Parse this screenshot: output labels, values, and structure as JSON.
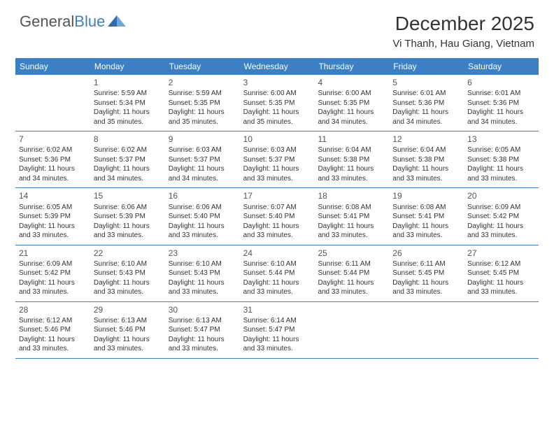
{
  "logo": {
    "part1": "General",
    "part2": "Blue"
  },
  "title": "December 2025",
  "location": "Vi Thanh, Hau Giang, Vietnam",
  "colors": {
    "header_bg": "#3b7fc4",
    "header_text": "#ffffff",
    "text": "#333333",
    "row_border": "#3b7fc4",
    "logo_gray": "#555555",
    "logo_blue": "#3b7fc4",
    "background": "#ffffff"
  },
  "typography": {
    "title_fontsize": 28,
    "location_fontsize": 15,
    "dayheader_fontsize": 12,
    "daynum_fontsize": 12,
    "body_fontsize": 10
  },
  "day_headers": [
    "Sunday",
    "Monday",
    "Tuesday",
    "Wednesday",
    "Thursday",
    "Friday",
    "Saturday"
  ],
  "weeks": [
    [
      {
        "num": "",
        "sunrise": "",
        "sunset": "",
        "daylight": ""
      },
      {
        "num": "1",
        "sunrise": "Sunrise: 5:59 AM",
        "sunset": "Sunset: 5:34 PM",
        "daylight": "Daylight: 11 hours and 35 minutes."
      },
      {
        "num": "2",
        "sunrise": "Sunrise: 5:59 AM",
        "sunset": "Sunset: 5:35 PM",
        "daylight": "Daylight: 11 hours and 35 minutes."
      },
      {
        "num": "3",
        "sunrise": "Sunrise: 6:00 AM",
        "sunset": "Sunset: 5:35 PM",
        "daylight": "Daylight: 11 hours and 35 minutes."
      },
      {
        "num": "4",
        "sunrise": "Sunrise: 6:00 AM",
        "sunset": "Sunset: 5:35 PM",
        "daylight": "Daylight: 11 hours and 34 minutes."
      },
      {
        "num": "5",
        "sunrise": "Sunrise: 6:01 AM",
        "sunset": "Sunset: 5:36 PM",
        "daylight": "Daylight: 11 hours and 34 minutes."
      },
      {
        "num": "6",
        "sunrise": "Sunrise: 6:01 AM",
        "sunset": "Sunset: 5:36 PM",
        "daylight": "Daylight: 11 hours and 34 minutes."
      }
    ],
    [
      {
        "num": "7",
        "sunrise": "Sunrise: 6:02 AM",
        "sunset": "Sunset: 5:36 PM",
        "daylight": "Daylight: 11 hours and 34 minutes."
      },
      {
        "num": "8",
        "sunrise": "Sunrise: 6:02 AM",
        "sunset": "Sunset: 5:37 PM",
        "daylight": "Daylight: 11 hours and 34 minutes."
      },
      {
        "num": "9",
        "sunrise": "Sunrise: 6:03 AM",
        "sunset": "Sunset: 5:37 PM",
        "daylight": "Daylight: 11 hours and 34 minutes."
      },
      {
        "num": "10",
        "sunrise": "Sunrise: 6:03 AM",
        "sunset": "Sunset: 5:37 PM",
        "daylight": "Daylight: 11 hours and 33 minutes."
      },
      {
        "num": "11",
        "sunrise": "Sunrise: 6:04 AM",
        "sunset": "Sunset: 5:38 PM",
        "daylight": "Daylight: 11 hours and 33 minutes."
      },
      {
        "num": "12",
        "sunrise": "Sunrise: 6:04 AM",
        "sunset": "Sunset: 5:38 PM",
        "daylight": "Daylight: 11 hours and 33 minutes."
      },
      {
        "num": "13",
        "sunrise": "Sunrise: 6:05 AM",
        "sunset": "Sunset: 5:38 PM",
        "daylight": "Daylight: 11 hours and 33 minutes."
      }
    ],
    [
      {
        "num": "14",
        "sunrise": "Sunrise: 6:05 AM",
        "sunset": "Sunset: 5:39 PM",
        "daylight": "Daylight: 11 hours and 33 minutes."
      },
      {
        "num": "15",
        "sunrise": "Sunrise: 6:06 AM",
        "sunset": "Sunset: 5:39 PM",
        "daylight": "Daylight: 11 hours and 33 minutes."
      },
      {
        "num": "16",
        "sunrise": "Sunrise: 6:06 AM",
        "sunset": "Sunset: 5:40 PM",
        "daylight": "Daylight: 11 hours and 33 minutes."
      },
      {
        "num": "17",
        "sunrise": "Sunrise: 6:07 AM",
        "sunset": "Sunset: 5:40 PM",
        "daylight": "Daylight: 11 hours and 33 minutes."
      },
      {
        "num": "18",
        "sunrise": "Sunrise: 6:08 AM",
        "sunset": "Sunset: 5:41 PM",
        "daylight": "Daylight: 11 hours and 33 minutes."
      },
      {
        "num": "19",
        "sunrise": "Sunrise: 6:08 AM",
        "sunset": "Sunset: 5:41 PM",
        "daylight": "Daylight: 11 hours and 33 minutes."
      },
      {
        "num": "20",
        "sunrise": "Sunrise: 6:09 AM",
        "sunset": "Sunset: 5:42 PM",
        "daylight": "Daylight: 11 hours and 33 minutes."
      }
    ],
    [
      {
        "num": "21",
        "sunrise": "Sunrise: 6:09 AM",
        "sunset": "Sunset: 5:42 PM",
        "daylight": "Daylight: 11 hours and 33 minutes."
      },
      {
        "num": "22",
        "sunrise": "Sunrise: 6:10 AM",
        "sunset": "Sunset: 5:43 PM",
        "daylight": "Daylight: 11 hours and 33 minutes."
      },
      {
        "num": "23",
        "sunrise": "Sunrise: 6:10 AM",
        "sunset": "Sunset: 5:43 PM",
        "daylight": "Daylight: 11 hours and 33 minutes."
      },
      {
        "num": "24",
        "sunrise": "Sunrise: 6:10 AM",
        "sunset": "Sunset: 5:44 PM",
        "daylight": "Daylight: 11 hours and 33 minutes."
      },
      {
        "num": "25",
        "sunrise": "Sunrise: 6:11 AM",
        "sunset": "Sunset: 5:44 PM",
        "daylight": "Daylight: 11 hours and 33 minutes."
      },
      {
        "num": "26",
        "sunrise": "Sunrise: 6:11 AM",
        "sunset": "Sunset: 5:45 PM",
        "daylight": "Daylight: 11 hours and 33 minutes."
      },
      {
        "num": "27",
        "sunrise": "Sunrise: 6:12 AM",
        "sunset": "Sunset: 5:45 PM",
        "daylight": "Daylight: 11 hours and 33 minutes."
      }
    ],
    [
      {
        "num": "28",
        "sunrise": "Sunrise: 6:12 AM",
        "sunset": "Sunset: 5:46 PM",
        "daylight": "Daylight: 11 hours and 33 minutes."
      },
      {
        "num": "29",
        "sunrise": "Sunrise: 6:13 AM",
        "sunset": "Sunset: 5:46 PM",
        "daylight": "Daylight: 11 hours and 33 minutes."
      },
      {
        "num": "30",
        "sunrise": "Sunrise: 6:13 AM",
        "sunset": "Sunset: 5:47 PM",
        "daylight": "Daylight: 11 hours and 33 minutes."
      },
      {
        "num": "31",
        "sunrise": "Sunrise: 6:14 AM",
        "sunset": "Sunset: 5:47 PM",
        "daylight": "Daylight: 11 hours and 33 minutes."
      },
      {
        "num": "",
        "sunrise": "",
        "sunset": "",
        "daylight": ""
      },
      {
        "num": "",
        "sunrise": "",
        "sunset": "",
        "daylight": ""
      },
      {
        "num": "",
        "sunrise": "",
        "sunset": "",
        "daylight": ""
      }
    ]
  ]
}
